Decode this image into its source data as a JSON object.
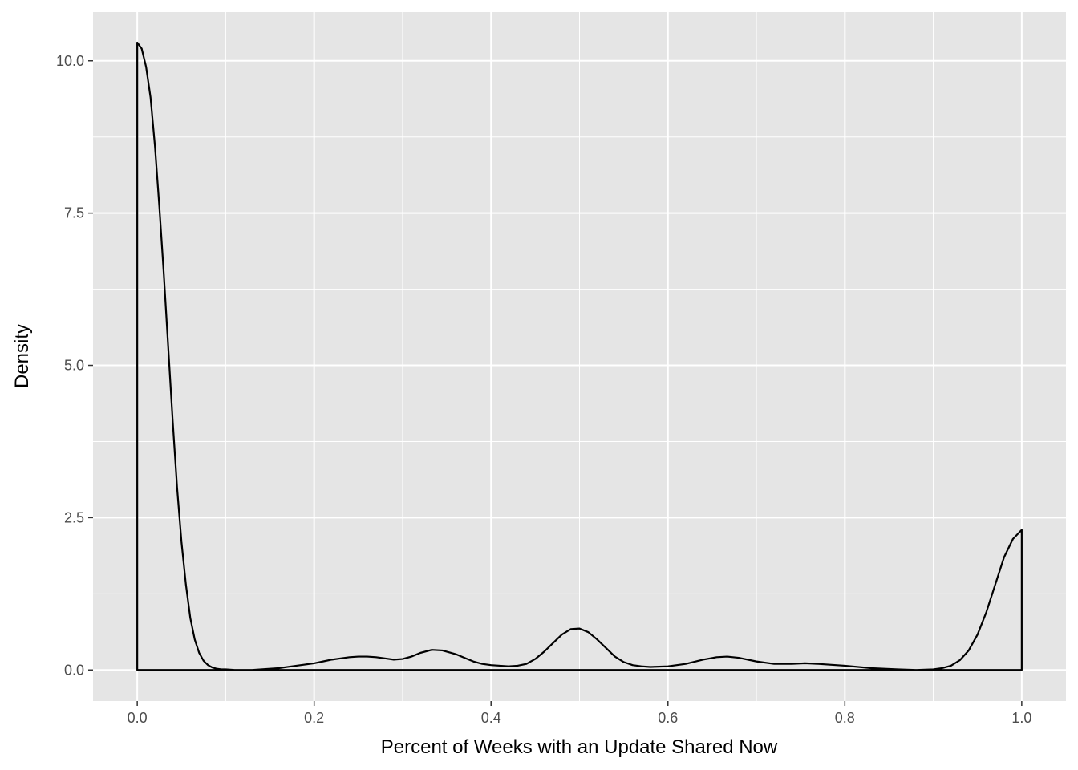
{
  "chart_data": {
    "type": "area",
    "title": "",
    "xlabel": "Percent of Weeks with an Update Shared Now",
    "ylabel": "Density",
    "xlim": [
      -0.05,
      1.05
    ],
    "ylim": [
      -0.51,
      10.8
    ],
    "x_ticks": [
      0.0,
      0.2,
      0.4,
      0.6,
      0.8,
      1.0
    ],
    "x_tick_labels": [
      "0.0",
      "0.2",
      "0.4",
      "0.6",
      "0.8",
      "1.0"
    ],
    "y_ticks": [
      0.0,
      2.5,
      5.0,
      7.5,
      10.0
    ],
    "y_tick_labels": [
      "0.0",
      "2.5",
      "5.0",
      "7.5",
      "10.0"
    ],
    "grid": true,
    "panel_background": "#e5e5e5",
    "grid_color": "#ffffff",
    "line_color": "#000000",
    "series": [
      {
        "x": [
          0.0,
          0.005,
          0.01,
          0.015,
          0.02,
          0.025,
          0.03,
          0.035,
          0.04,
          0.045,
          0.05,
          0.055,
          0.06,
          0.065,
          0.07,
          0.075,
          0.08,
          0.085,
          0.09,
          0.095,
          0.1,
          0.11,
          0.12,
          0.13,
          0.14,
          0.15,
          0.16,
          0.17,
          0.18,
          0.19,
          0.2,
          0.21,
          0.22,
          0.23,
          0.24,
          0.25,
          0.26,
          0.27,
          0.28,
          0.29,
          0.3,
          0.31,
          0.32,
          0.333,
          0.345,
          0.36,
          0.37,
          0.38,
          0.39,
          0.4,
          0.41,
          0.42,
          0.43,
          0.44,
          0.45,
          0.46,
          0.47,
          0.48,
          0.49,
          0.5,
          0.51,
          0.52,
          0.53,
          0.54,
          0.55,
          0.56,
          0.57,
          0.58,
          0.6,
          0.62,
          0.64,
          0.655,
          0.667,
          0.68,
          0.7,
          0.72,
          0.74,
          0.755,
          0.77,
          0.8,
          0.83,
          0.86,
          0.88,
          0.9,
          0.91,
          0.92,
          0.93,
          0.94,
          0.95,
          0.96,
          0.97,
          0.98,
          0.99,
          1.0
        ],
        "values": [
          10.3,
          10.2,
          9.9,
          9.4,
          8.6,
          7.6,
          6.5,
          5.3,
          4.1,
          3.0,
          2.1,
          1.4,
          0.85,
          0.5,
          0.28,
          0.15,
          0.08,
          0.04,
          0.02,
          0.01,
          0.01,
          0.0,
          0.0,
          0.0,
          0.01,
          0.02,
          0.03,
          0.05,
          0.07,
          0.09,
          0.11,
          0.14,
          0.17,
          0.19,
          0.21,
          0.22,
          0.22,
          0.21,
          0.19,
          0.17,
          0.18,
          0.22,
          0.28,
          0.33,
          0.32,
          0.26,
          0.2,
          0.14,
          0.1,
          0.08,
          0.07,
          0.06,
          0.07,
          0.1,
          0.18,
          0.3,
          0.44,
          0.58,
          0.67,
          0.68,
          0.62,
          0.5,
          0.36,
          0.22,
          0.13,
          0.08,
          0.06,
          0.05,
          0.06,
          0.1,
          0.17,
          0.21,
          0.22,
          0.2,
          0.14,
          0.1,
          0.1,
          0.11,
          0.1,
          0.07,
          0.03,
          0.01,
          0.0,
          0.01,
          0.03,
          0.07,
          0.16,
          0.32,
          0.58,
          0.95,
          1.4,
          1.85,
          2.15,
          2.3
        ]
      }
    ]
  }
}
